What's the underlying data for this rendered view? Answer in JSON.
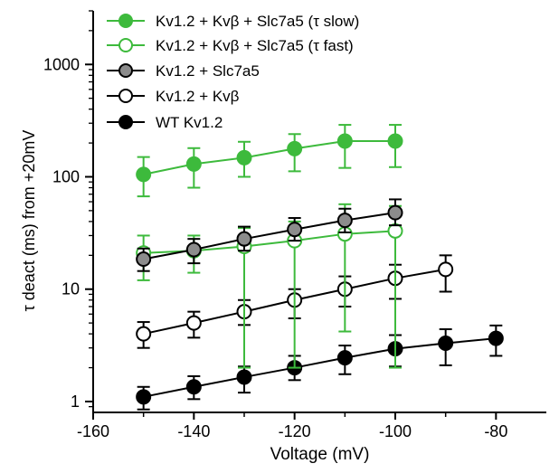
{
  "chart_data": {
    "type": "line",
    "title": "",
    "xlabel": "Voltage (mV)",
    "ylabel": "τ deact (ms) from +20mV",
    "xlim": [
      -160,
      -70
    ],
    "ylim": [
      0.8,
      3000
    ],
    "yscale": "log",
    "xticks": [
      -160,
      -140,
      -120,
      -100,
      -80
    ],
    "xtick_labels": [
      "-160",
      "-140",
      "-120",
      "-100",
      "-80"
    ],
    "yticks": [
      1,
      10,
      100,
      1000
    ],
    "ytick_labels": [
      "1",
      "10",
      "100",
      "1000"
    ],
    "grid": false,
    "legend_position": "top-left",
    "series": [
      {
        "name": "Kv1.2 + Kvβ + Slc7a5 (τ slow)",
        "color": "#3dba3c",
        "marker": "filled-circle",
        "x": [
          -150,
          -140,
          -130,
          -120,
          -110,
          -100
        ],
        "y": [
          105,
          130,
          148,
          178,
          208,
          208
        ],
        "yerr_low": [
          67,
          80,
          100,
          112,
          120,
          122
        ],
        "yerr_high": [
          150,
          180,
          205,
          240,
          290,
          290
        ]
      },
      {
        "name": "Kv1.2 + Kvβ + Slc7a5 (τ fast)",
        "color": "#3dba3c",
        "marker": "open-circle",
        "x": [
          -150,
          -140,
          -130,
          -120,
          -110,
          -100
        ],
        "y": [
          21,
          22,
          24,
          27,
          31,
          33
        ],
        "yerr_low": [
          12,
          14,
          2.0,
          2.0,
          4.2,
          2.0
        ],
        "yerr_high": [
          30,
          30,
          35,
          40,
          57,
          55
        ]
      },
      {
        "name": "Kv1.2 + Slc7a5",
        "color": "#555555",
        "marker": "gray-circle",
        "x": [
          -150,
          -140,
          -130,
          -120,
          -110,
          -100
        ],
        "y": [
          18.5,
          22.5,
          28,
          34,
          41,
          48
        ],
        "yerr_low": [
          14.5,
          17,
          22,
          27,
          32,
          37
        ],
        "yerr_high": [
          23,
          28,
          36,
          43,
          52,
          63
        ]
      },
      {
        "name": "Kv1.2 + Kvβ",
        "color": "#000000",
        "marker": "open-circle",
        "x": [
          -150,
          -140,
          -130,
          -120,
          -110,
          -100,
          -90
        ],
        "y": [
          4.0,
          5.0,
          6.3,
          8.0,
          10,
          12.5,
          15
        ],
        "yerr_low": [
          3.0,
          3.7,
          4.8,
          5.5,
          7.0,
          8.2,
          9.5
        ],
        "yerr_high": [
          5.1,
          6.3,
          8.0,
          10,
          13,
          16.5,
          20
        ]
      },
      {
        "name": "WT Kv1.2",
        "color": "#000000",
        "marker": "filled-circle",
        "x": [
          -150,
          -140,
          -130,
          -120,
          -110,
          -100,
          -90,
          -80
        ],
        "y": [
          1.1,
          1.35,
          1.65,
          2.0,
          2.45,
          2.95,
          3.3,
          3.65
        ],
        "yerr_low": [
          0.85,
          1.05,
          1.2,
          1.55,
          1.75,
          2.05,
          2.1,
          2.55
        ],
        "yerr_high": [
          1.35,
          1.68,
          2.05,
          2.55,
          3.15,
          3.9,
          4.4,
          4.75
        ]
      }
    ]
  }
}
